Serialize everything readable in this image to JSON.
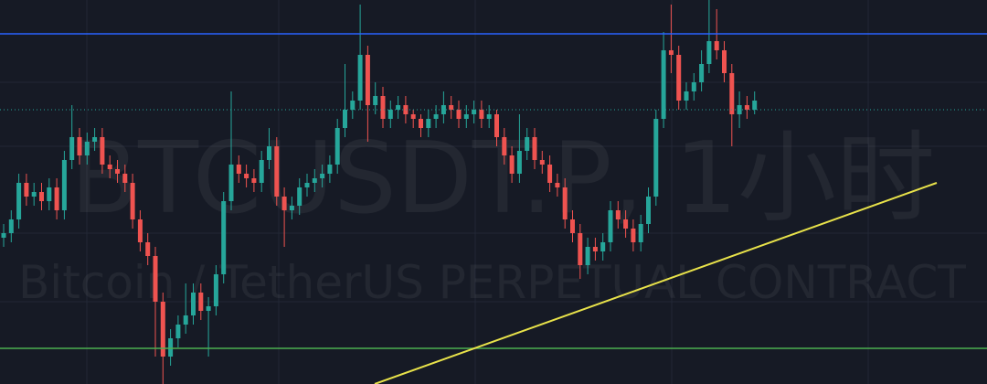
{
  "chart_data": {
    "type": "candlestick",
    "title": "BTCUSDT.P, 1小时",
    "subtitle": "Bitcoin / TetherUS PERPETUAL CONTRACT",
    "ylim": [
      0,
      420
    ],
    "up_color": "#26a69a",
    "down_color": "#ef5350",
    "open": [
      160,
      165,
      180,
      220,
      205,
      210,
      200,
      215,
      190,
      245,
      270,
      250,
      265,
      270,
      240,
      235,
      230,
      220,
      180,
      155,
      140,
      90,
      30,
      50,
      65,
      75,
      100,
      80,
      85,
      120,
      200,
      240,
      230,
      225,
      220,
      245,
      260,
      205,
      190,
      195,
      215,
      220,
      225,
      230,
      240,
      280,
      300,
      310,
      360,
      305,
      315,
      290,
      300,
      305,
      295,
      290,
      280,
      290,
      295,
      305,
      300,
      290,
      295,
      300,
      290,
      295,
      270,
      250,
      230,
      255,
      270,
      245,
      240,
      220,
      215,
      180,
      165,
      130,
      150,
      145,
      155,
      190,
      180,
      170,
      155,
      175,
      205,
      290,
      365,
      360,
      310,
      320,
      330,
      350,
      375,
      365,
      340,
      295,
      305,
      300
    ],
    "high": [
      175,
      190,
      230,
      230,
      220,
      220,
      225,
      225,
      255,
      305,
      280,
      275,
      280,
      280,
      250,
      245,
      240,
      230,
      190,
      165,
      150,
      100,
      60,
      75,
      110,
      110,
      110,
      95,
      130,
      210,
      320,
      250,
      240,
      235,
      255,
      280,
      270,
      215,
      205,
      225,
      230,
      235,
      240,
      250,
      290,
      350,
      320,
      415,
      370,
      330,
      325,
      310,
      315,
      315,
      300,
      295,
      300,
      305,
      320,
      315,
      310,
      305,
      310,
      310,
      305,
      300,
      280,
      260,
      295,
      280,
      280,
      255,
      250,
      230,
      225,
      190,
      175,
      160,
      160,
      165,
      200,
      200,
      190,
      180,
      185,
      215,
      300,
      385,
      415,
      370,
      330,
      340,
      365,
      420,
      410,
      375,
      350,
      320,
      315,
      320
    ],
    "low": [
      150,
      155,
      170,
      195,
      195,
      190,
      190,
      180,
      180,
      235,
      240,
      240,
      255,
      230,
      225,
      220,
      210,
      170,
      145,
      130,
      30,
      0,
      20,
      40,
      55,
      65,
      70,
      30,
      75,
      110,
      190,
      220,
      215,
      210,
      210,
      235,
      195,
      150,
      180,
      185,
      205,
      210,
      215,
      220,
      230,
      270,
      290,
      300,
      265,
      295,
      280,
      280,
      290,
      285,
      280,
      270,
      270,
      280,
      285,
      290,
      280,
      280,
      285,
      280,
      280,
      260,
      240,
      220,
      220,
      245,
      235,
      230,
      210,
      205,
      170,
      155,
      115,
      120,
      135,
      135,
      145,
      170,
      160,
      145,
      145,
      165,
      195,
      280,
      340,
      300,
      300,
      310,
      320,
      340,
      355,
      330,
      260,
      280,
      290,
      295
    ],
    "close": [
      165,
      180,
      220,
      205,
      210,
      200,
      215,
      190,
      245,
      270,
      250,
      265,
      270,
      240,
      235,
      230,
      220,
      180,
      155,
      140,
      90,
      30,
      50,
      65,
      75,
      100,
      80,
      85,
      120,
      200,
      240,
      230,
      225,
      220,
      245,
      260,
      205,
      190,
      195,
      215,
      220,
      225,
      230,
      240,
      280,
      300,
      310,
      360,
      305,
      315,
      290,
      300,
      305,
      295,
      290,
      280,
      290,
      295,
      305,
      300,
      290,
      295,
      300,
      290,
      295,
      270,
      250,
      230,
      255,
      270,
      245,
      240,
      220,
      215,
      180,
      165,
      130,
      150,
      145,
      155,
      190,
      180,
      170,
      155,
      175,
      205,
      290,
      365,
      360,
      310,
      320,
      330,
      350,
      375,
      365,
      340,
      295,
      305,
      300,
      310
    ],
    "hlines": [
      {
        "value": 383,
        "color": "#2962ff",
        "style": "solid"
      },
      {
        "value": 300,
        "color": "#26a69a",
        "style": "dotted"
      },
      {
        "value": 39,
        "color": "#4caf50",
        "style": "solid"
      }
    ]
  }
}
